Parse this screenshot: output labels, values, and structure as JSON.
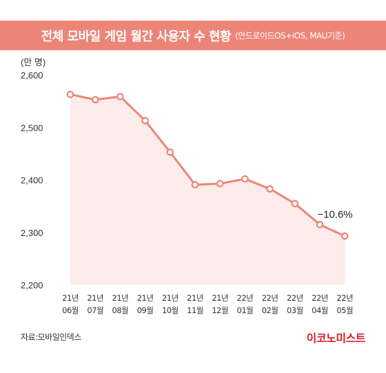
{
  "title": {
    "main": "전체 모바일 게임 월간 사용자 수 현황",
    "sub": "(안드로이드OS+iOS, MAU기준)"
  },
  "source": "자료:모바일인덱스",
  "logo": "이코노미스트",
  "colors": {
    "title_bg": "#ec8578",
    "line": "#ec8578",
    "area_fill": "#fdecea",
    "marker_fill": "#ffffff",
    "logo": "#d81f26"
  },
  "chart_data": {
    "type": "area",
    "unit_label": "(만 명)",
    "categories": [
      [
        "21년",
        "06월"
      ],
      [
        "21년",
        "07월"
      ],
      [
        "21년",
        "08월"
      ],
      [
        "21년",
        "09월"
      ],
      [
        "21년",
        "10월"
      ],
      [
        "21년",
        "11월"
      ],
      [
        "21년",
        "12월"
      ],
      [
        "22년",
        "01월"
      ],
      [
        "22년",
        "02월"
      ],
      [
        "22년",
        "03월"
      ],
      [
        "22년",
        "04월"
      ],
      [
        "22년",
        "05월"
      ]
    ],
    "values": [
      2563,
      2553,
      2559,
      2513,
      2453,
      2391,
      2393,
      2402,
      2383,
      2355,
      2315,
      2293
    ],
    "ylim": [
      2200,
      2600
    ],
    "yticks": [
      2200,
      2300,
      2400,
      2500,
      2600
    ],
    "ytick_labels": [
      "2,200",
      "2,300",
      "2,400",
      "2,500",
      "2,600"
    ],
    "annotation": {
      "text": "−10.6%",
      "index": 10
    },
    "grid": false
  }
}
